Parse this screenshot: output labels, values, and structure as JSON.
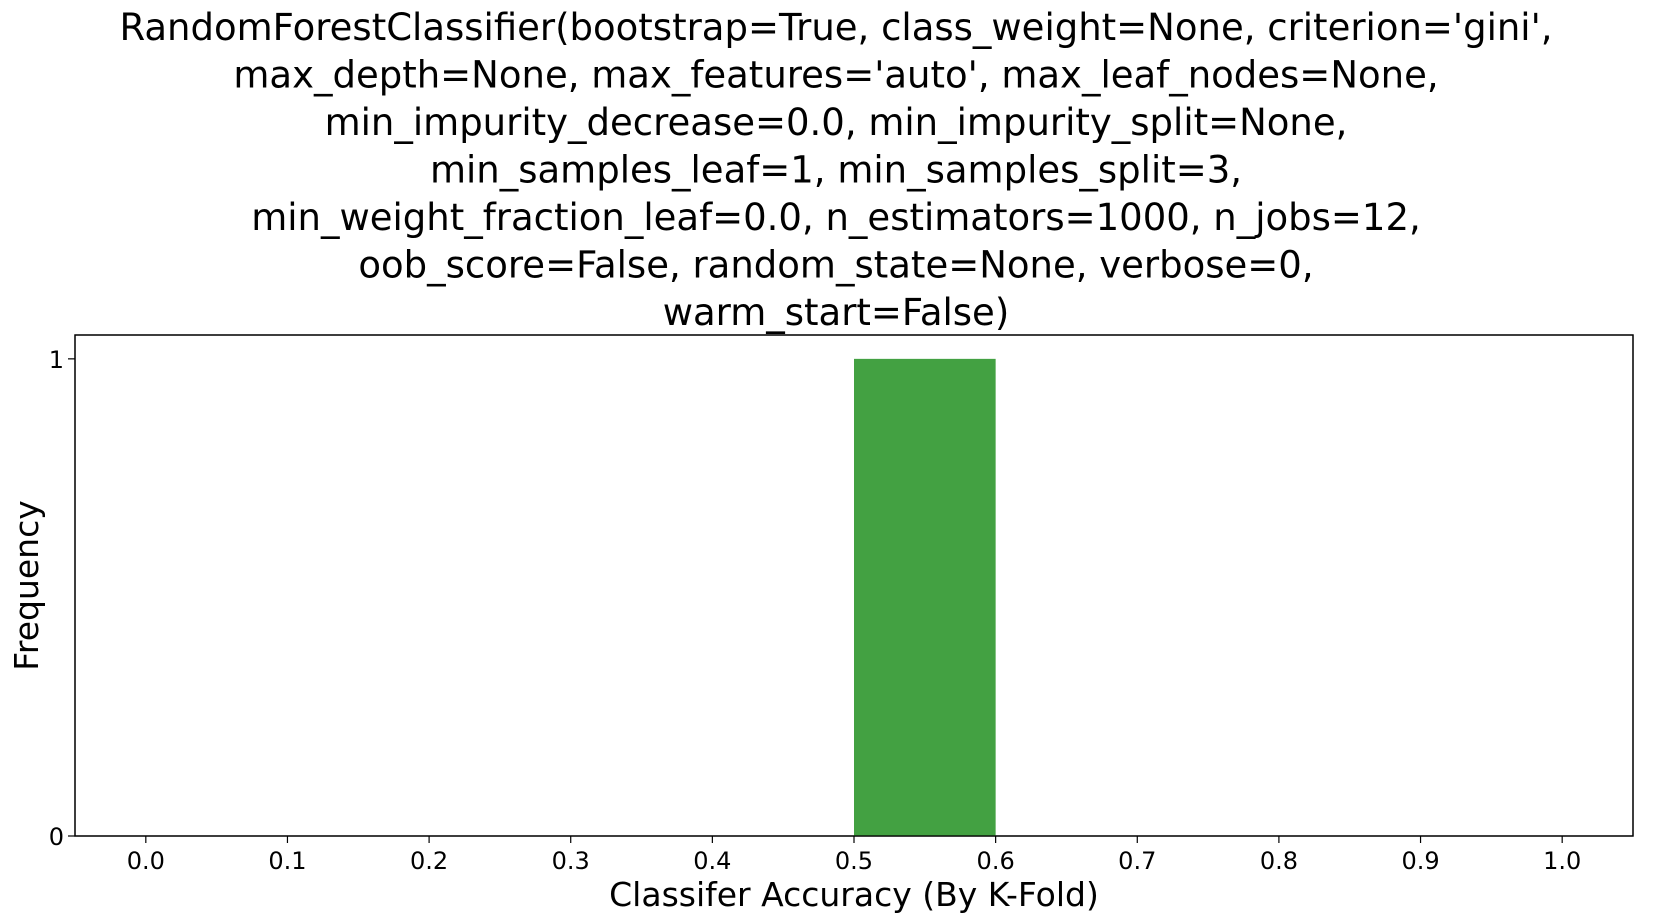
{
  "chart_data": {
    "type": "bar",
    "title_lines": [
      "RandomForestClassifier(bootstrap=True, class_weight=None, criterion='gini',",
      "max_depth=None, max_features='auto', max_leaf_nodes=None,",
      "min_impurity_decrease=0.0, min_impurity_split=None,",
      "min_samples_leaf=1, min_samples_split=3,",
      "min_weight_fraction_leaf=0.0, n_estimators=1000, n_jobs=12,",
      "oob_score=False, random_state=None, verbose=0,",
      "warm_start=False)"
    ],
    "xlabel": "Classifer Accuracy (By K-Fold)",
    "ylabel": "Frequency",
    "xlim": [
      -0.05,
      1.05
    ],
    "ylim": [
      0,
      1.05
    ],
    "x_ticks": [
      "0.0",
      "0.1",
      "0.2",
      "0.3",
      "0.4",
      "0.5",
      "0.6",
      "0.7",
      "0.8",
      "0.9",
      "1.0"
    ],
    "y_ticks": [
      "0",
      "1"
    ],
    "bins": [
      {
        "start": 0.5,
        "end": 0.6,
        "value": 1
      }
    ],
    "bar_color": "#43a142",
    "grid": false
  }
}
